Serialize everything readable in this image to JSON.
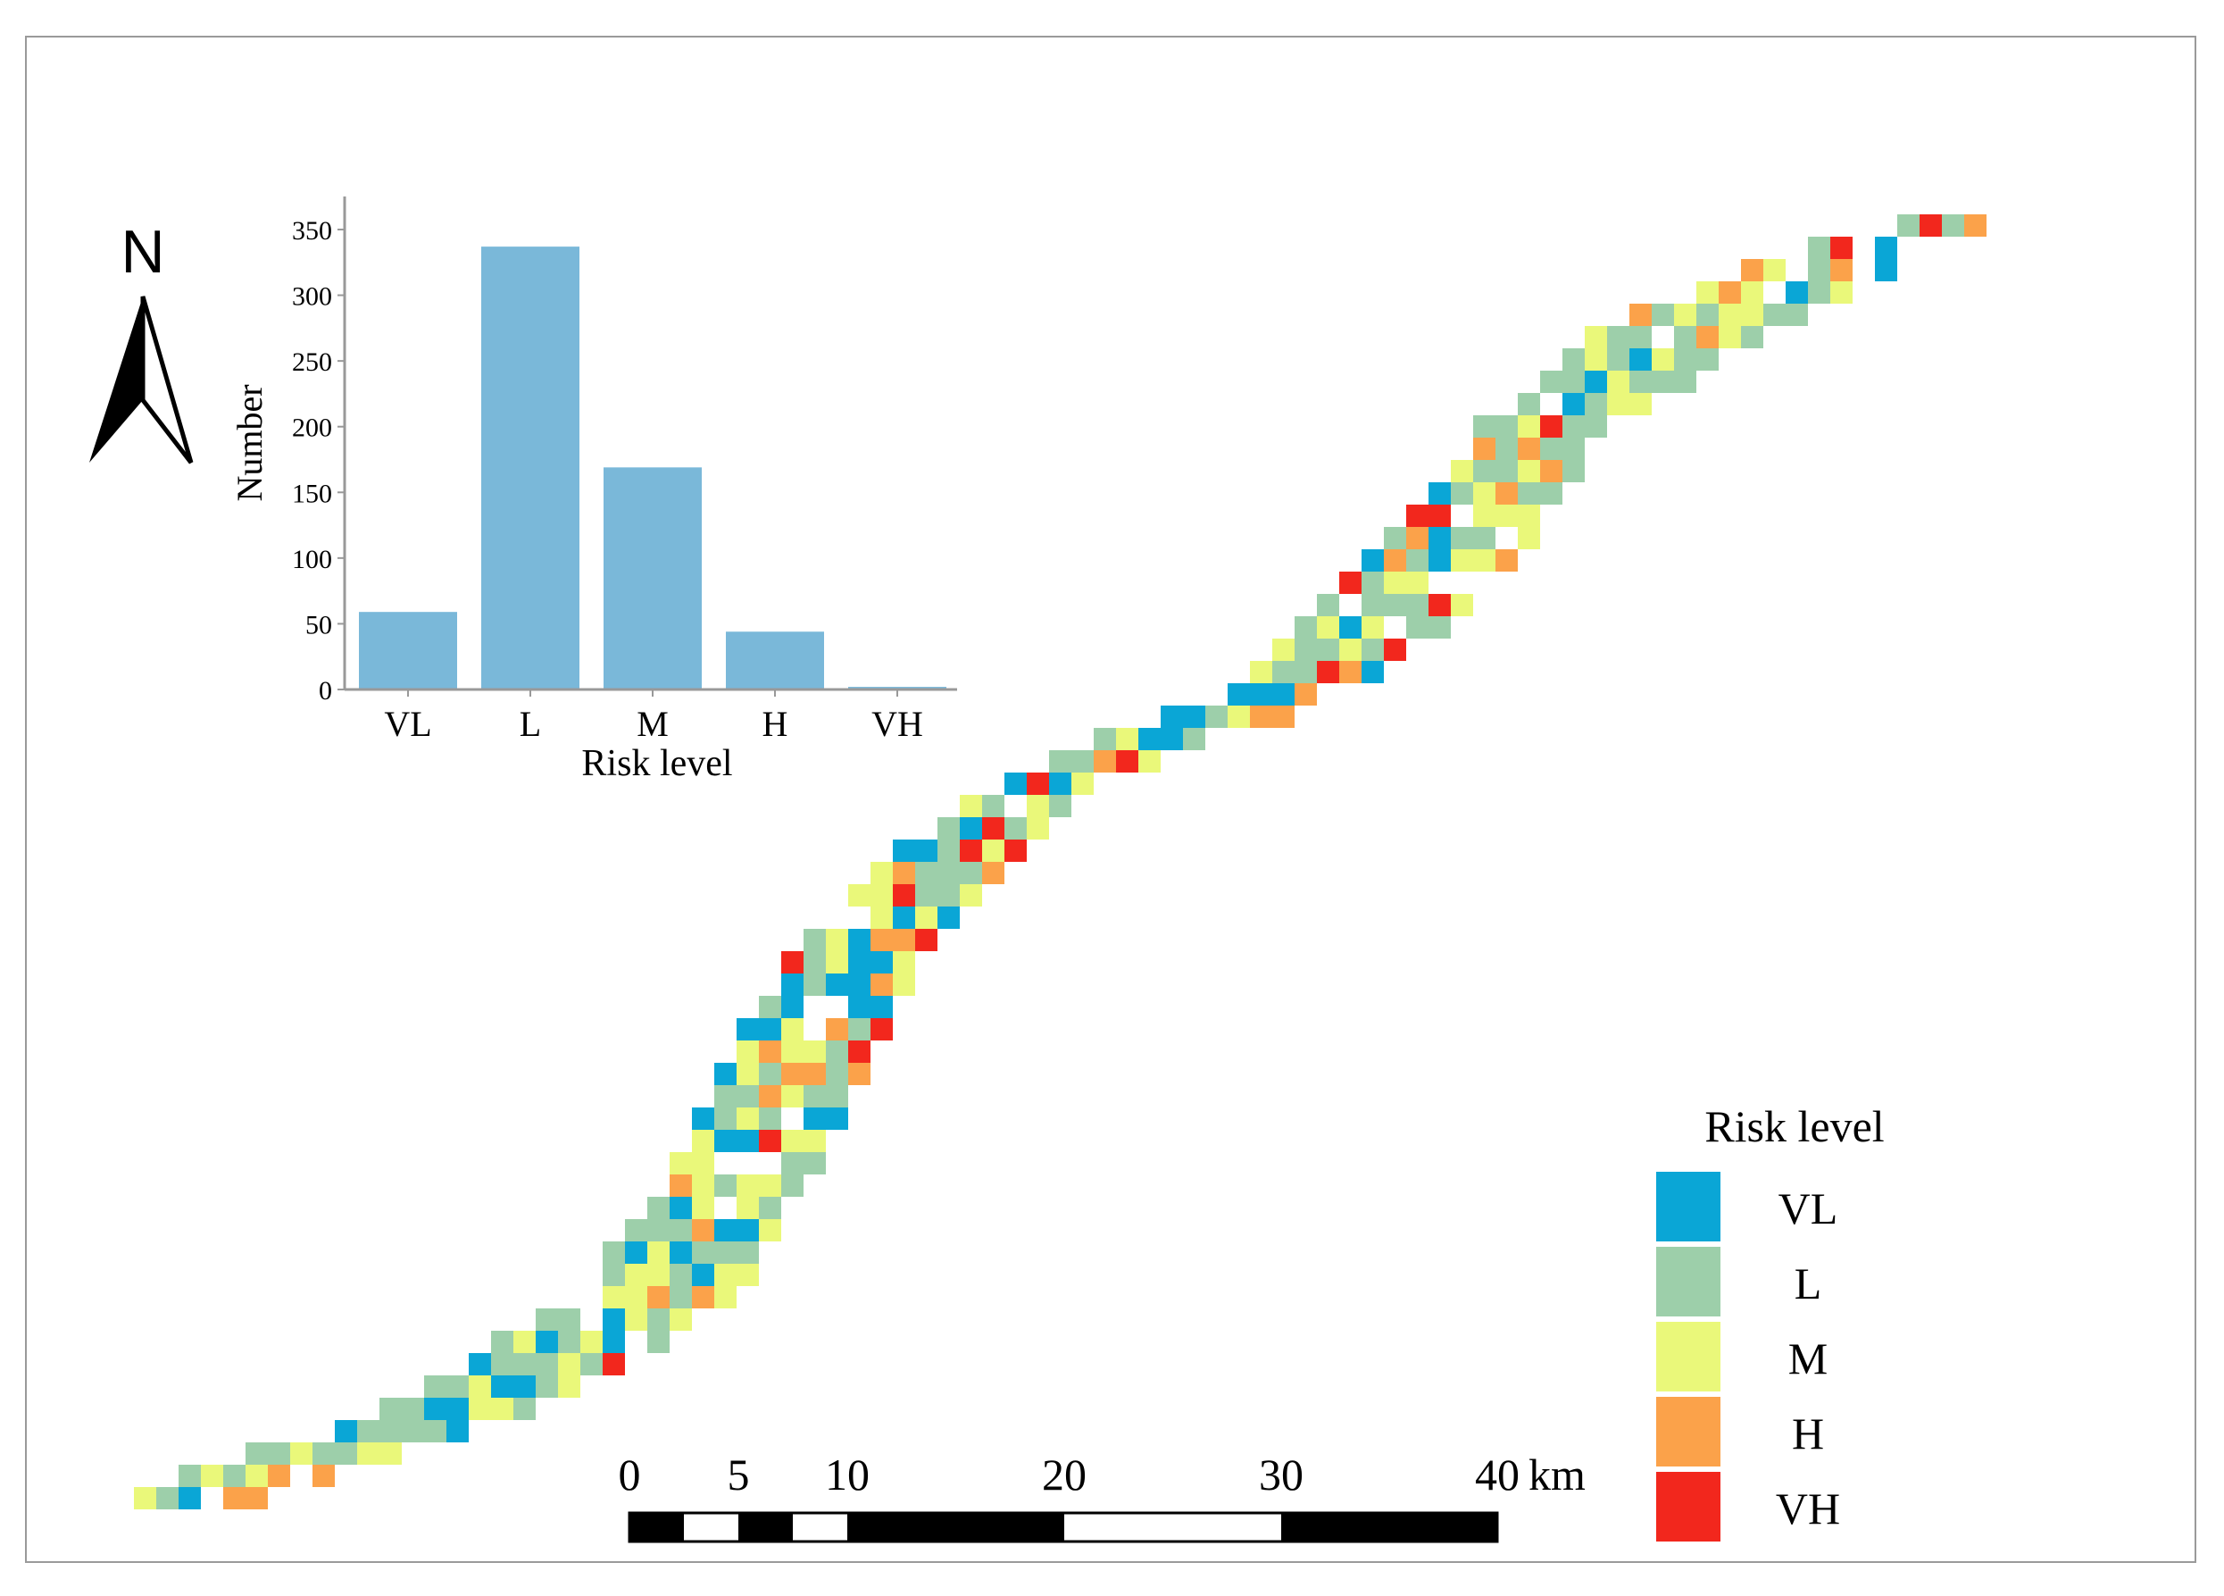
{
  "north_arrow": {
    "label": "N"
  },
  "chart_data": {
    "type": "bar",
    "categories": [
      "VL",
      "L",
      "M",
      "H",
      "VH"
    ],
    "values": [
      59,
      337,
      169,
      44,
      2
    ],
    "title": "",
    "xlabel": "Risk level",
    "ylabel": "Number",
    "ylim": [
      0,
      375
    ],
    "yticks": [
      0,
      50,
      100,
      150,
      200,
      250,
      300,
      350
    ],
    "bar_color": "#7ab8d9"
  },
  "legend": {
    "title": "Risk level",
    "items": [
      {
        "label": "VL",
        "color": "#0aa6d6"
      },
      {
        "label": "L",
        "color": "#9dcfaa"
      },
      {
        "label": "M",
        "color": "#eaf87a"
      },
      {
        "label": "H",
        "color": "#fba24a"
      },
      {
        "label": "VH",
        "color": "#f2271d"
      }
    ]
  },
  "scale_bar": {
    "ticks": [
      "0",
      "5",
      "10",
      "20",
      "30",
      "40"
    ],
    "unit": "km"
  }
}
